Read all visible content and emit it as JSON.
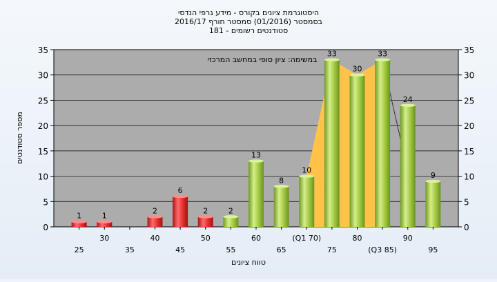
{
  "chart_data": {
    "type": "bar",
    "title_lines": [
      "היסטוגרמת ציונים בקורס - מידע גרפי הנדסי",
      "בסמסטר  (01/2016)  סמסטר חורף 2016/17",
      "סטודנטים רשומים - 181"
    ],
    "annotation": "במשימה: ציון סופי במחשב המרכזי",
    "ylabel": "מספר סטודנטים",
    "xlabel": "טווח ציונים",
    "ylim": [
      0,
      35
    ],
    "yticks": [
      0,
      5,
      10,
      15,
      20,
      25,
      30,
      35
    ],
    "xlim": [
      20,
      100
    ],
    "x_tick_labels": [
      {
        "x": 25,
        "label": "25"
      },
      {
        "x": 30,
        "label": "30"
      },
      {
        "x": 35,
        "label": "35"
      },
      {
        "x": 40,
        "label": "40"
      },
      {
        "x": 45,
        "label": "45"
      },
      {
        "x": 50,
        "label": "50"
      },
      {
        "x": 55,
        "label": "55"
      },
      {
        "x": 60,
        "label": "60"
      },
      {
        "x": 65,
        "label": "65"
      },
      {
        "x": 70,
        "label": "(Q1 70)"
      },
      {
        "x": 75,
        "label": "75"
      },
      {
        "x": 80,
        "label": "80"
      },
      {
        "x": 85,
        "label": "(Q3 85)"
      },
      {
        "x": 90,
        "label": "90"
      },
      {
        "x": 95,
        "label": "95"
      }
    ],
    "bars": [
      {
        "x": 25,
        "value": 1,
        "group": "fail"
      },
      {
        "x": 30,
        "value": 1,
        "group": "fail"
      },
      {
        "x": 40,
        "value": 2,
        "group": "fail"
      },
      {
        "x": 45,
        "value": 6,
        "group": "fail"
      },
      {
        "x": 50,
        "value": 2,
        "group": "fail"
      },
      {
        "x": 55,
        "value": 2,
        "group": "pass"
      },
      {
        "x": 60,
        "value": 13,
        "group": "pass"
      },
      {
        "x": 65,
        "value": 8,
        "group": "pass"
      },
      {
        "x": 70,
        "value": 10,
        "group": "pass"
      },
      {
        "x": 75,
        "value": 33,
        "group": "pass"
      },
      {
        "x": 80,
        "value": 30,
        "group": "pass"
      },
      {
        "x": 85,
        "value": 33,
        "group": "pass"
      },
      {
        "x": 90,
        "value": 24,
        "group": "pass"
      },
      {
        "x": 95,
        "value": 9,
        "group": "pass"
      }
    ],
    "quartile_area": {
      "x": [
        70,
        75,
        80,
        85
      ],
      "y": [
        10,
        33,
        30,
        33
      ]
    },
    "median_line": {
      "x": [
        85,
        90
      ],
      "y": [
        33,
        11
      ]
    },
    "grid": true,
    "colors": {
      "plot_background": "#acacac",
      "fail_bar": "#e02a2a",
      "pass_bar": "#9cc43e",
      "quartile_area": "#ffc34a",
      "grid": "#000000"
    }
  }
}
